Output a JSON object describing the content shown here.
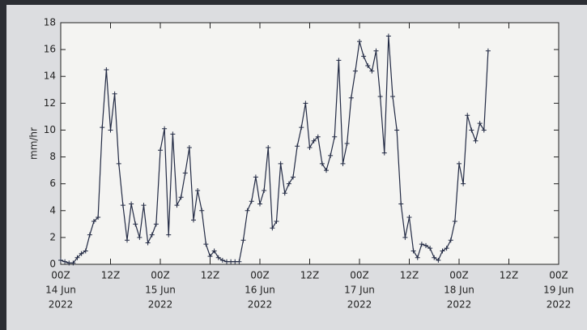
{
  "chart_data": {
    "type": "line",
    "y_label": "mm/hr",
    "x": [
      "2022-06-14T00Z",
      "2022-06-14T01Z",
      "2022-06-14T02Z",
      "2022-06-14T03Z",
      "2022-06-14T04Z",
      "2022-06-14T05Z",
      "2022-06-14T06Z",
      "2022-06-14T07Z",
      "2022-06-14T08Z",
      "2022-06-14T09Z",
      "2022-06-14T10Z",
      "2022-06-14T11Z",
      "2022-06-14T12Z",
      "2022-06-14T13Z",
      "2022-06-14T14Z",
      "2022-06-14T15Z",
      "2022-06-14T16Z",
      "2022-06-14T17Z",
      "2022-06-14T18Z",
      "2022-06-14T19Z",
      "2022-06-14T20Z",
      "2022-06-14T21Z",
      "2022-06-14T22Z",
      "2022-06-14T23Z",
      "2022-06-15T00Z",
      "2022-06-15T01Z",
      "2022-06-15T02Z",
      "2022-06-15T03Z",
      "2022-06-15T04Z",
      "2022-06-15T05Z",
      "2022-06-15T06Z",
      "2022-06-15T07Z",
      "2022-06-15T08Z",
      "2022-06-15T09Z",
      "2022-06-15T10Z",
      "2022-06-15T11Z",
      "2022-06-15T12Z",
      "2022-06-15T13Z",
      "2022-06-15T14Z",
      "2022-06-15T15Z",
      "2022-06-15T16Z",
      "2022-06-15T17Z",
      "2022-06-15T18Z",
      "2022-06-15T19Z",
      "2022-06-15T20Z",
      "2022-06-15T21Z",
      "2022-06-15T22Z",
      "2022-06-15T23Z",
      "2022-06-16T00Z",
      "2022-06-16T01Z",
      "2022-06-16T02Z",
      "2022-06-16T03Z",
      "2022-06-16T04Z",
      "2022-06-16T05Z",
      "2022-06-16T06Z",
      "2022-06-16T07Z",
      "2022-06-16T08Z",
      "2022-06-16T09Z",
      "2022-06-16T10Z",
      "2022-06-16T11Z",
      "2022-06-16T12Z",
      "2022-06-16T13Z",
      "2022-06-16T14Z",
      "2022-06-16T15Z",
      "2022-06-16T16Z",
      "2022-06-16T17Z",
      "2022-06-16T18Z",
      "2022-06-16T19Z",
      "2022-06-16T20Z",
      "2022-06-16T21Z",
      "2022-06-16T22Z",
      "2022-06-16T23Z",
      "2022-06-17T00Z",
      "2022-06-17T01Z",
      "2022-06-17T02Z",
      "2022-06-17T03Z",
      "2022-06-17T04Z",
      "2022-06-17T05Z",
      "2022-06-17T06Z",
      "2022-06-17T07Z",
      "2022-06-17T08Z",
      "2022-06-17T09Z",
      "2022-06-17T10Z",
      "2022-06-17T11Z",
      "2022-06-17T12Z",
      "2022-06-17T13Z",
      "2022-06-17T14Z",
      "2022-06-17T15Z",
      "2022-06-17T16Z",
      "2022-06-17T17Z",
      "2022-06-17T18Z",
      "2022-06-17T19Z",
      "2022-06-17T20Z",
      "2022-06-17T21Z",
      "2022-06-17T22Z",
      "2022-06-17T23Z",
      "2022-06-18T00Z",
      "2022-06-18T01Z",
      "2022-06-18T02Z",
      "2022-06-18T03Z",
      "2022-06-18T04Z",
      "2022-06-18T05Z",
      "2022-06-18T06Z",
      "2022-06-18T07Z"
    ],
    "values": [
      0.3,
      0.2,
      0.1,
      0.1,
      0.5,
      0.8,
      1.0,
      2.2,
      3.2,
      3.5,
      10.2,
      14.5,
      10.0,
      12.7,
      7.5,
      4.4,
      1.8,
      4.5,
      3.0,
      2.0,
      4.4,
      1.6,
      2.2,
      3.0,
      8.5,
      10.1,
      2.2,
      9.7,
      4.4,
      5.0,
      6.8,
      8.7,
      3.3,
      5.5,
      4.0,
      1.5,
      0.6,
      1.0,
      0.5,
      0.3,
      0.2,
      0.2,
      0.2,
      0.2,
      1.8,
      4.0,
      4.7,
      6.5,
      4.5,
      5.5,
      8.7,
      2.7,
      3.2,
      7.5,
      5.3,
      6.0,
      6.5,
      8.8,
      10.2,
      12.0,
      8.7,
      9.2,
      9.5,
      7.5,
      7.0,
      8.1,
      9.5,
      15.2,
      7.5,
      9.0,
      12.4,
      14.4,
      16.6,
      15.5,
      14.8,
      14.4,
      15.9,
      12.5,
      8.3,
      17.0,
      12.5,
      10.0,
      4.5,
      2.0,
      3.5,
      1.0,
      0.5,
      1.5,
      1.4,
      1.2,
      0.5,
      0.3,
      1.0,
      1.2,
      1.8,
      3.2,
      7.5,
      6.0,
      11.1,
      10.0,
      9.2,
      10.5,
      10.0,
      15.9
    ],
    "color": "#222a44",
    "xlim": [
      "2022-06-14T00Z",
      "2022-06-19T00Z"
    ],
    "xticks": [
      {
        "value": "2022-06-14T00Z",
        "label": [
          "00Z",
          "14 Jun",
          "2022"
        ]
      },
      {
        "value": "2022-06-14T12Z",
        "label": [
          "12Z"
        ]
      },
      {
        "value": "2022-06-15T00Z",
        "label": [
          "00Z",
          "15 Jun",
          "2022"
        ]
      },
      {
        "value": "2022-06-15T12Z",
        "label": [
          "12Z"
        ]
      },
      {
        "value": "2022-06-16T00Z",
        "label": [
          "00Z",
          "16 Jun",
          "2022"
        ]
      },
      {
        "value": "2022-06-16T12Z",
        "label": [
          "12Z"
        ]
      },
      {
        "value": "2022-06-17T00Z",
        "label": [
          "00Z",
          "17 Jun",
          "2022"
        ]
      },
      {
        "value": "2022-06-17T12Z",
        "label": [
          "12Z"
        ]
      },
      {
        "value": "2022-06-18T00Z",
        "label": [
          "00Z",
          "18 Jun",
          "2022"
        ]
      },
      {
        "value": "2022-06-18T12Z",
        "label": [
          "12Z"
        ]
      },
      {
        "value": "2022-06-19T00Z",
        "label": [
          "00Z",
          "19 Jun",
          "2022"
        ]
      }
    ],
    "ylim": [
      0,
      18
    ],
    "yticks": [
      0,
      2,
      4,
      6,
      8,
      10,
      12,
      14,
      16,
      18
    ],
    "grid": false
  }
}
